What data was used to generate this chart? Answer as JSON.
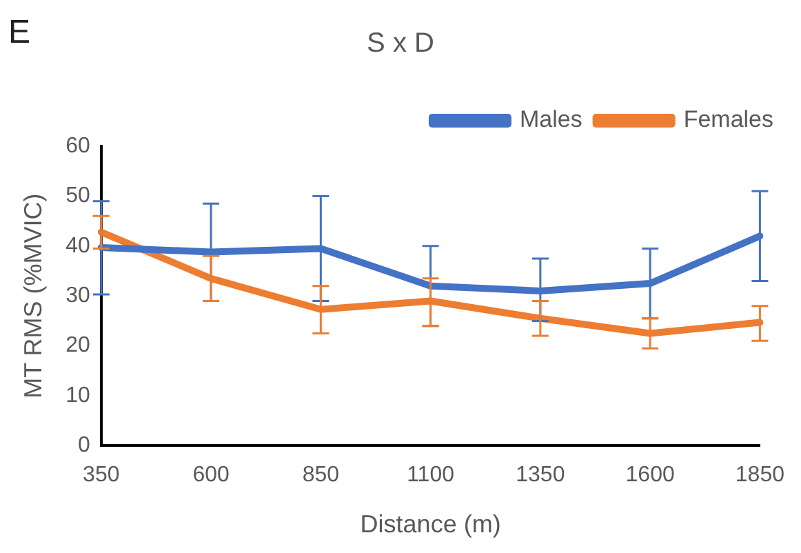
{
  "chart_data": {
    "type": "line",
    "title": "S x D",
    "xlabel": "Distance (m)",
    "ylabel": "MT RMS (%MVIC)",
    "annotations": [
      "E"
    ],
    "categories": [
      "350",
      "600",
      "850",
      "1100",
      "1350",
      "1600",
      "1850"
    ],
    "series": [
      {
        "name": "Males",
        "color": "#4472c4",
        "values": [
          39.7,
          38.8,
          39.5,
          32,
          31,
          32.5,
          42
        ],
        "errors": [
          [
            30.3,
            49
          ],
          [
            29,
            48.5
          ],
          [
            29,
            50
          ],
          [
            24,
            40
          ],
          [
            25,
            37.5
          ],
          [
            25.5,
            39.5
          ],
          [
            33,
            51
          ]
        ]
      },
      {
        "name": "Females",
        "color": "#ed7d31",
        "values": [
          42.8,
          33.5,
          27.3,
          29,
          25.5,
          22.5,
          24.7
        ],
        "errors": [
          [
            39.5,
            46
          ],
          [
            29,
            38
          ],
          [
            22.5,
            32
          ],
          [
            24,
            33.5
          ],
          [
            22,
            29
          ],
          [
            19.5,
            25.5
          ],
          [
            21,
            28
          ]
        ]
      }
    ],
    "ylim": [
      0,
      60
    ],
    "yticks": [
      0,
      10,
      20,
      30,
      40,
      50,
      60
    ],
    "grid": false,
    "legend": "top right",
    "marker": "none",
    "line_style": "solid"
  }
}
